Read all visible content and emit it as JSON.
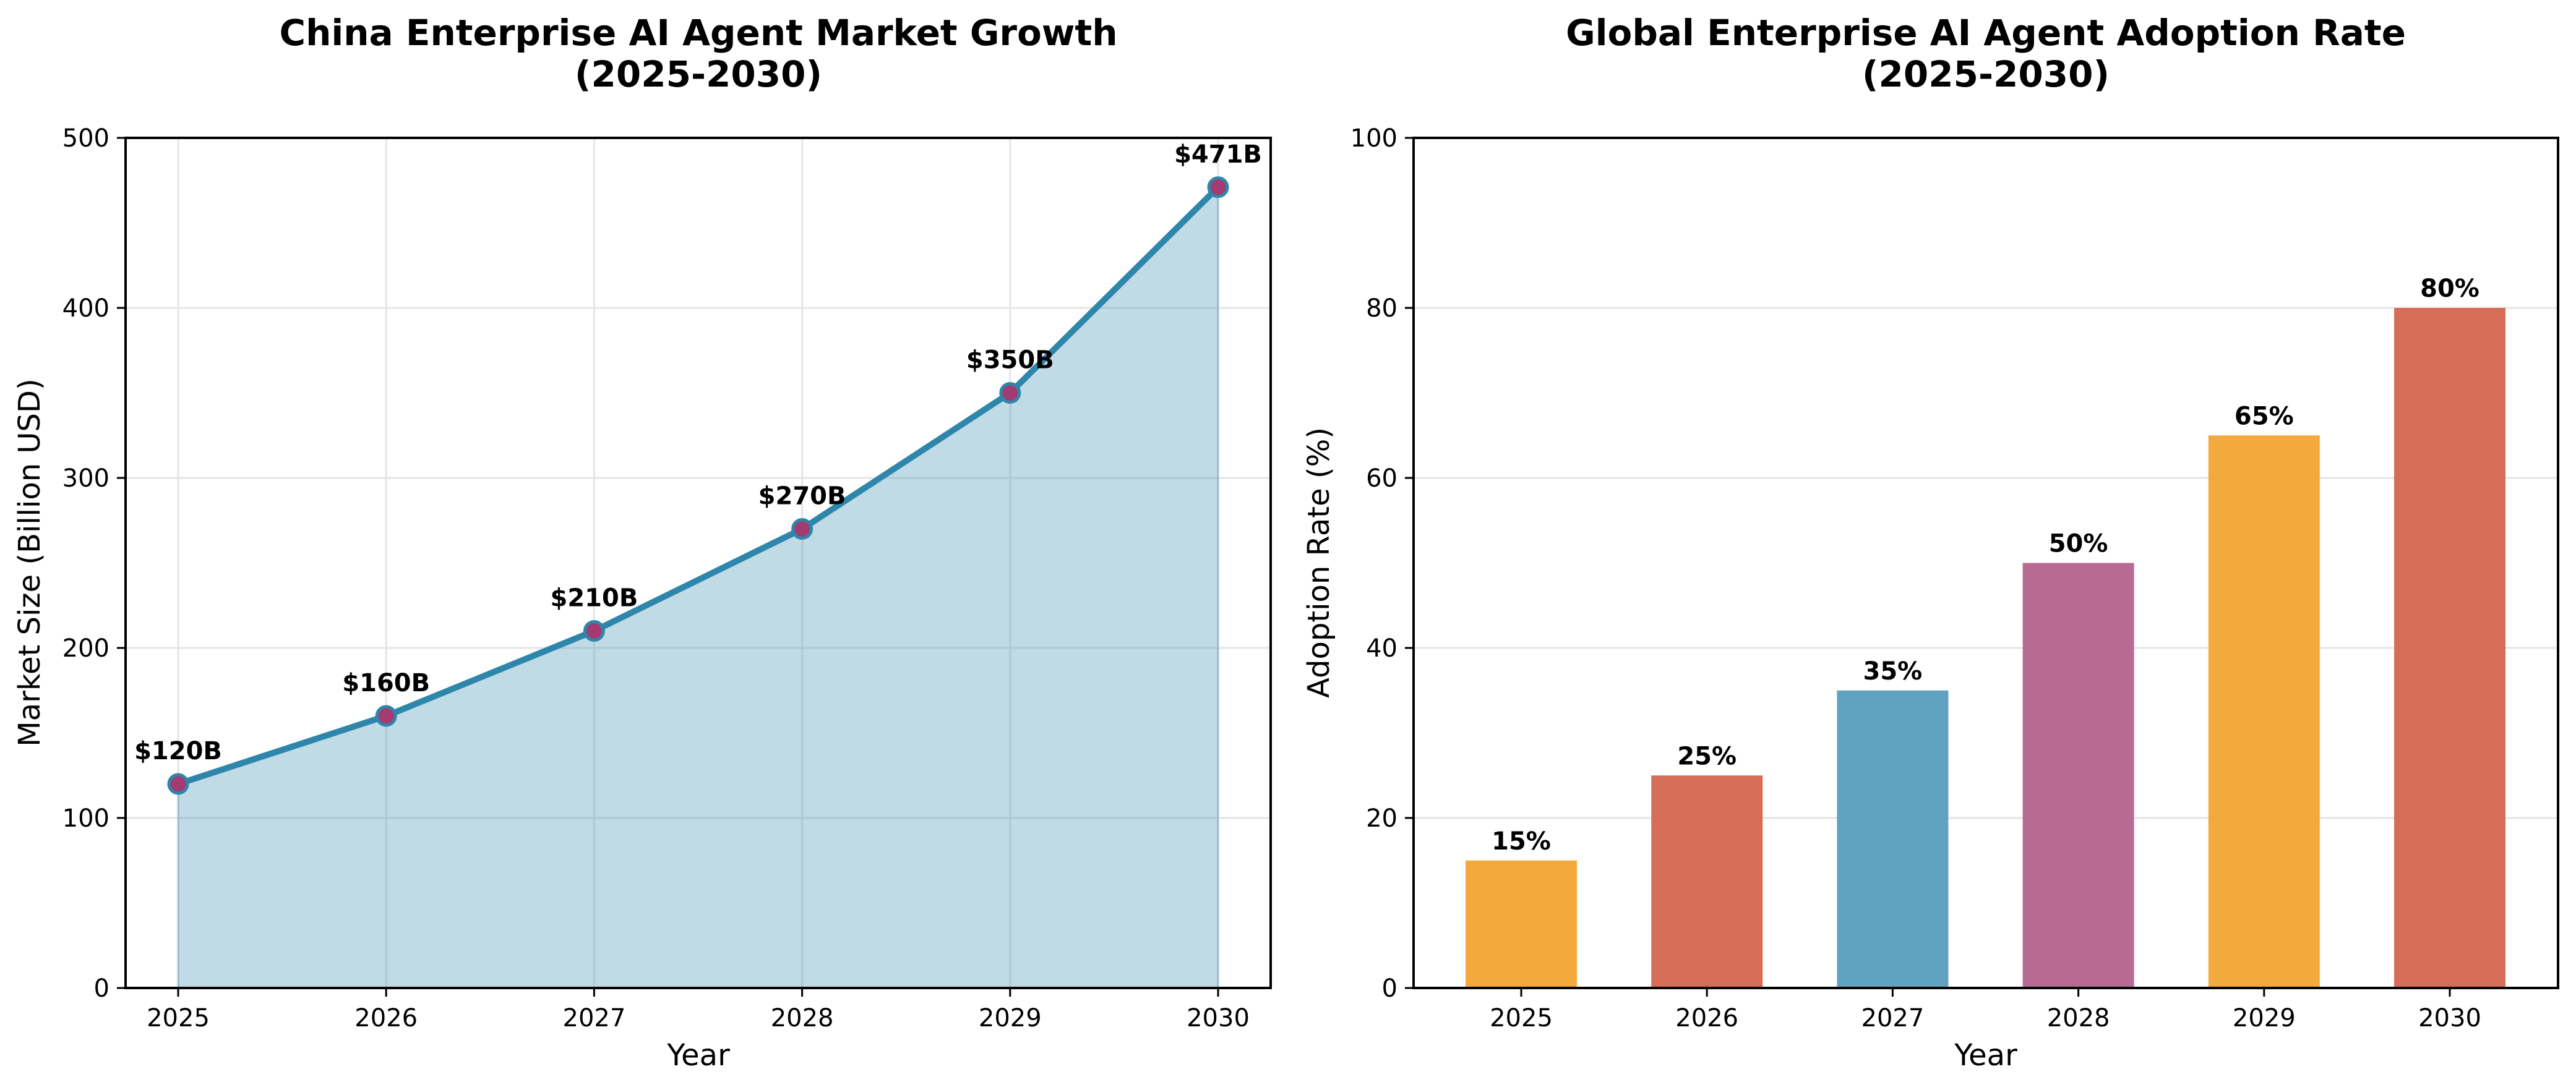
{
  "chart_data": [
    {
      "type": "area",
      "title": "China Enterprise AI Agent Market Growth\n(2025-2030)",
      "title_lines": [
        "China Enterprise AI Agent Market Growth",
        "(2025-2030)"
      ],
      "xlabel": "Year",
      "ylabel": "Market Size (Billion USD)",
      "x": [
        2025,
        2026,
        2027,
        2028,
        2029,
        2030
      ],
      "x_tick_labels": [
        "2025",
        "2026",
        "2027",
        "2028",
        "2029",
        "2030"
      ],
      "values": [
        120,
        160,
        210,
        270,
        350,
        471
      ],
      "data_labels": [
        "$120B",
        "$160B",
        "$210B",
        "$270B",
        "$350B",
        "$471B"
      ],
      "ylim": [
        0,
        500
      ],
      "y_ticks": [
        0,
        100,
        200,
        300,
        400,
        500
      ],
      "y_tick_labels": [
        "0",
        "100",
        "200",
        "300",
        "400",
        "500"
      ],
      "grid": true,
      "legend": "none",
      "colors": {
        "line": "#2E86AB",
        "fill": "#2E86AB",
        "marker_face": "#A23B72",
        "marker_edge": "#2E86AB",
        "grid": "#E5E5E5"
      }
    },
    {
      "type": "bar",
      "title": "Global Enterprise AI Agent Adoption Rate\n(2025-2030)",
      "title_lines": [
        "Global Enterprise AI Agent Adoption Rate",
        "(2025-2030)"
      ],
      "xlabel": "Year",
      "ylabel": "Adoption Rate (%)",
      "categories": [
        "2025",
        "2026",
        "2027",
        "2028",
        "2029",
        "2030"
      ],
      "values": [
        15,
        25,
        35,
        50,
        65,
        80
      ],
      "data_labels": [
        "15%",
        "25%",
        "35%",
        "50%",
        "65%",
        "80%"
      ],
      "ylim": [
        0,
        100
      ],
      "y_ticks": [
        0,
        20,
        40,
        60,
        80,
        100
      ],
      "y_tick_labels": [
        "0",
        "20",
        "40",
        "60",
        "80",
        "100"
      ],
      "grid": true,
      "legend": "none",
      "bar_colors": [
        "#F1A533",
        "#D4654D",
        "#5A9DBE",
        "#B4638C",
        "#F1A533",
        "#D4654D"
      ],
      "colors": {
        "grid": "#E5E5E5"
      }
    }
  ]
}
